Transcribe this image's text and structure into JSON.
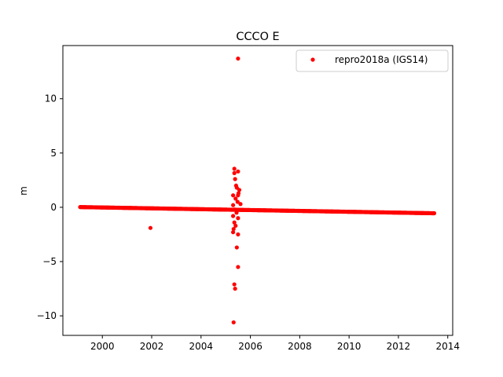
{
  "chart_data": {
    "type": "scatter",
    "title": "CCCO E",
    "xlabel": "",
    "ylabel": "m",
    "xlim": [
      1998.4,
      2014.2
    ],
    "ylim": [
      -11.8,
      14.9
    ],
    "xticks": [
      2000,
      2002,
      2004,
      2006,
      2008,
      2010,
      2012,
      2014
    ],
    "yticks": [
      -10,
      -5,
      0,
      5,
      10
    ],
    "grid": false,
    "legend": "top-right",
    "series": [
      {
        "name": "repro2018a (IGS14)",
        "color": "#ff0000",
        "trend": {
          "x_start": 1999.1,
          "x_end": 2013.45,
          "y_start": 0.02,
          "y_end": -0.55
        },
        "points": [
          {
            "x": 2001.95,
            "y": -1.9
          },
          {
            "x": 2005.5,
            "y": 13.7
          },
          {
            "x": 2005.35,
            "y": 3.55
          },
          {
            "x": 2005.35,
            "y": 3.15
          },
          {
            "x": 2005.5,
            "y": 3.3
          },
          {
            "x": 2005.38,
            "y": 2.6
          },
          {
            "x": 2005.42,
            "y": 2.0
          },
          {
            "x": 2005.45,
            "y": 1.8
          },
          {
            "x": 2005.55,
            "y": 1.6
          },
          {
            "x": 2005.52,
            "y": 1.3
          },
          {
            "x": 2005.5,
            "y": 1.1
          },
          {
            "x": 2005.3,
            "y": 1.1
          },
          {
            "x": 2005.4,
            "y": 0.8
          },
          {
            "x": 2005.48,
            "y": 0.5
          },
          {
            "x": 2005.6,
            "y": 0.3
          },
          {
            "x": 2005.3,
            "y": 0.2
          },
          {
            "x": 2005.36,
            "y": -0.2
          },
          {
            "x": 2005.44,
            "y": -0.5
          },
          {
            "x": 2005.3,
            "y": -0.8
          },
          {
            "x": 2005.5,
            "y": -1.0
          },
          {
            "x": 2005.35,
            "y": -1.4
          },
          {
            "x": 2005.4,
            "y": -1.7
          },
          {
            "x": 2005.32,
            "y": -2.0
          },
          {
            "x": 2005.3,
            "y": -2.3
          },
          {
            "x": 2005.5,
            "y": -2.5
          },
          {
            "x": 2005.45,
            "y": -3.7
          },
          {
            "x": 2005.5,
            "y": -5.5
          },
          {
            "x": 2005.35,
            "y": -7.1
          },
          {
            "x": 2005.38,
            "y": -7.5
          },
          {
            "x": 2005.32,
            "y": -10.6
          }
        ]
      }
    ]
  }
}
